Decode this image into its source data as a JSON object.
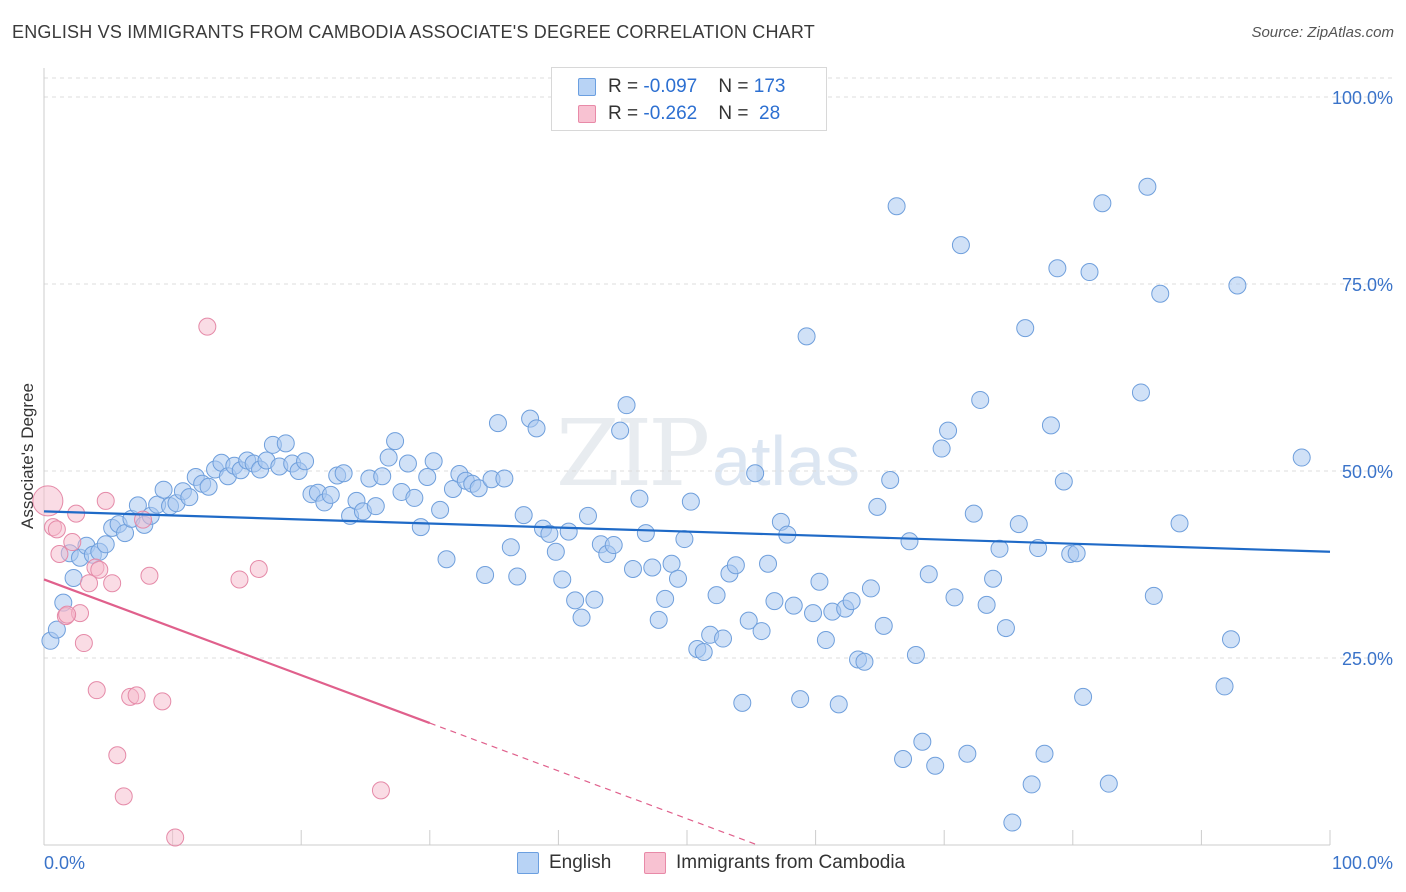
{
  "title": "ENGLISH VS IMMIGRANTS FROM CAMBODIA ASSOCIATE'S DEGREE CORRELATION CHART",
  "source": "Source: ZipAtlas.com",
  "watermark": {
    "zip": "ZIP",
    "atlas": "atlas"
  },
  "legend": {
    "r_label": "R = ",
    "n_label": "N = ",
    "series": [
      {
        "r": "-0.097",
        "n": "173"
      },
      {
        "r": "-0.262",
        "n": " 28"
      }
    ]
  },
  "colors": {
    "english_fill": "#a9c8f0",
    "english_stroke": "#6f9fdc",
    "english_line": "#1f6ac7",
    "cambodia_fill": "#f6b9cc",
    "cambodia_stroke": "#e58aa8",
    "cambodia_line": "#e0608c",
    "tick_label": "#3a73c9",
    "grid": "#dcdcdc"
  },
  "chart_data": {
    "type": "scatter",
    "title": "ENGLISH VS IMMIGRANTS FROM CAMBODIA ASSOCIATE'S DEGREE CORRELATION CHART",
    "xlabel": "",
    "ylabel": "Associate's Degree",
    "xlim": [
      0,
      100
    ],
    "ylim": [
      0,
      100
    ],
    "x_tick_labels": [
      "0.0%",
      "100.0%"
    ],
    "y_ticks": [
      25,
      50,
      75,
      100
    ],
    "y_tick_labels": [
      "25.0%",
      "50.0%",
      "75.0%",
      "100.0%"
    ],
    "series": [
      {
        "name": "English",
        "r": -0.097,
        "n": 173,
        "trend": {
          "x0": 0,
          "y0": 44.6,
          "x1": 100,
          "y1": 39.2
        },
        "points": [
          [
            0.5,
            27.3
          ],
          [
            1.0,
            28.8
          ],
          [
            1.5,
            32.4
          ],
          [
            2.0,
            39.0
          ],
          [
            2.3,
            35.7
          ],
          [
            2.8,
            38.4
          ],
          [
            3.3,
            40.0
          ],
          [
            3.8,
            38.8
          ],
          [
            4.3,
            39.2
          ],
          [
            4.8,
            40.2
          ],
          [
            5.3,
            42.4
          ],
          [
            5.8,
            42.9
          ],
          [
            6.3,
            41.7
          ],
          [
            6.8,
            43.6
          ],
          [
            7.3,
            45.4
          ],
          [
            7.8,
            42.8
          ],
          [
            8.3,
            44.0
          ],
          [
            8.8,
            45.5
          ],
          [
            9.3,
            47.5
          ],
          [
            9.8,
            45.3
          ],
          [
            10.3,
            45.7
          ],
          [
            10.8,
            47.3
          ],
          [
            11.3,
            46.5
          ],
          [
            11.8,
            49.2
          ],
          [
            12.3,
            48.3
          ],
          [
            12.8,
            47.9
          ],
          [
            13.3,
            50.2
          ],
          [
            13.8,
            51.1
          ],
          [
            14.3,
            49.3
          ],
          [
            14.8,
            50.7
          ],
          [
            15.3,
            50.1
          ],
          [
            15.8,
            51.4
          ],
          [
            16.3,
            51.0
          ],
          [
            16.8,
            50.2
          ],
          [
            17.3,
            51.4
          ],
          [
            17.8,
            53.5
          ],
          [
            18.3,
            50.6
          ],
          [
            18.8,
            53.7
          ],
          [
            19.3,
            51.0
          ],
          [
            19.8,
            50.0
          ],
          [
            20.3,
            51.3
          ],
          [
            20.8,
            46.9
          ],
          [
            21.3,
            47.1
          ],
          [
            21.8,
            45.8
          ],
          [
            22.3,
            46.8
          ],
          [
            22.8,
            49.4
          ],
          [
            23.3,
            49.7
          ],
          [
            23.8,
            44.0
          ],
          [
            24.3,
            46.0
          ],
          [
            24.8,
            44.6
          ],
          [
            25.3,
            49.0
          ],
          [
            25.8,
            45.3
          ],
          [
            26.3,
            49.3
          ],
          [
            26.8,
            51.8
          ],
          [
            27.3,
            54.0
          ],
          [
            27.8,
            47.2
          ],
          [
            28.3,
            51.0
          ],
          [
            28.8,
            46.4
          ],
          [
            29.3,
            42.5
          ],
          [
            29.8,
            49.2
          ],
          [
            30.3,
            51.3
          ],
          [
            30.8,
            44.8
          ],
          [
            31.3,
            38.2
          ],
          [
            31.8,
            47.6
          ],
          [
            32.3,
            49.6
          ],
          [
            32.8,
            48.7
          ],
          [
            33.3,
            48.3
          ],
          [
            33.8,
            47.7
          ],
          [
            34.3,
            36.1
          ],
          [
            34.8,
            48.9
          ],
          [
            35.3,
            56.4
          ],
          [
            35.8,
            49.0
          ],
          [
            36.3,
            39.8
          ],
          [
            36.8,
            35.9
          ],
          [
            37.3,
            44.1
          ],
          [
            37.8,
            57.0
          ],
          [
            38.3,
            55.7
          ],
          [
            38.8,
            42.3
          ],
          [
            39.3,
            41.6
          ],
          [
            39.8,
            39.2
          ],
          [
            40.3,
            35.5
          ],
          [
            40.8,
            41.9
          ],
          [
            41.3,
            32.7
          ],
          [
            41.8,
            30.4
          ],
          [
            42.3,
            44.0
          ],
          [
            42.8,
            32.8
          ],
          [
            43.3,
            40.2
          ],
          [
            43.8,
            38.9
          ],
          [
            44.3,
            40.1
          ],
          [
            44.8,
            55.4
          ],
          [
            45.3,
            58.8
          ],
          [
            45.8,
            36.9
          ],
          [
            46.3,
            46.3
          ],
          [
            46.8,
            41.7
          ],
          [
            47.3,
            37.1
          ],
          [
            47.8,
            30.1
          ],
          [
            48.3,
            32.9
          ],
          [
            48.8,
            37.6
          ],
          [
            49.3,
            35.6
          ],
          [
            49.8,
            40.9
          ],
          [
            50.3,
            45.9
          ],
          [
            50.8,
            26.2
          ],
          [
            51.3,
            25.8
          ],
          [
            51.8,
            28.1
          ],
          [
            52.3,
            33.4
          ],
          [
            52.8,
            27.6
          ],
          [
            53.3,
            36.3
          ],
          [
            53.8,
            37.4
          ],
          [
            54.3,
            19.0
          ],
          [
            54.8,
            30.0
          ],
          [
            55.3,
            49.7
          ],
          [
            55.8,
            28.6
          ],
          [
            56.3,
            37.6
          ],
          [
            56.8,
            32.6
          ],
          [
            57.3,
            43.2
          ],
          [
            57.8,
            41.5
          ],
          [
            58.3,
            32.0
          ],
          [
            58.8,
            19.5
          ],
          [
            59.3,
            68.0
          ],
          [
            59.8,
            31.0
          ],
          [
            60.3,
            35.2
          ],
          [
            60.8,
            27.4
          ],
          [
            61.3,
            31.2
          ],
          [
            61.8,
            18.8
          ],
          [
            62.3,
            31.6
          ],
          [
            62.8,
            32.6
          ],
          [
            63.3,
            24.8
          ],
          [
            63.8,
            24.5
          ],
          [
            64.3,
            34.3
          ],
          [
            64.8,
            45.2
          ],
          [
            65.3,
            29.3
          ],
          [
            65.8,
            48.8
          ],
          [
            66.3,
            85.4
          ],
          [
            66.8,
            11.5
          ],
          [
            67.3,
            40.6
          ],
          [
            67.8,
            25.4
          ],
          [
            68.3,
            13.8
          ],
          [
            68.8,
            36.2
          ],
          [
            69.3,
            10.6
          ],
          [
            69.8,
            53.0
          ],
          [
            70.3,
            55.4
          ],
          [
            70.8,
            33.1
          ],
          [
            71.3,
            80.2
          ],
          [
            71.8,
            12.2
          ],
          [
            72.3,
            44.3
          ],
          [
            72.8,
            59.5
          ],
          [
            73.3,
            32.1
          ],
          [
            73.8,
            35.6
          ],
          [
            74.3,
            39.6
          ],
          [
            74.8,
            29.0
          ],
          [
            75.3,
            3.0
          ],
          [
            75.8,
            42.9
          ],
          [
            76.3,
            69.1
          ],
          [
            76.8,
            8.1
          ],
          [
            77.3,
            39.7
          ],
          [
            77.8,
            12.2
          ],
          [
            78.3,
            56.1
          ],
          [
            78.8,
            77.1
          ],
          [
            79.3,
            48.6
          ],
          [
            79.8,
            38.9
          ],
          [
            80.3,
            39.0
          ],
          [
            80.8,
            19.8
          ],
          [
            81.3,
            76.6
          ],
          [
            82.3,
            85.8
          ],
          [
            82.8,
            8.2
          ],
          [
            85.3,
            60.5
          ],
          [
            85.8,
            88.0
          ],
          [
            86.3,
            33.3
          ],
          [
            86.8,
            73.7
          ],
          [
            88.3,
            43.0
          ],
          [
            91.8,
            21.2
          ],
          [
            92.3,
            27.5
          ],
          [
            92.8,
            74.8
          ],
          [
            97.8,
            51.8
          ]
        ]
      },
      {
        "name": "Immigrants from Cambodia",
        "r": -0.262,
        "n": 28,
        "trend": {
          "x0": 0,
          "y0": 35.5,
          "x1": 30,
          "y1": 16.3
        },
        "trend_dashed": {
          "x0": 30,
          "y0": 16.3,
          "x1": 55.5,
          "y1": 0
        },
        "points": [
          [
            0.3,
            46.0
          ],
          [
            0.7,
            42.5
          ],
          [
            1.2,
            38.9
          ],
          [
            1.7,
            30.6
          ],
          [
            2.2,
            40.5
          ],
          [
            2.5,
            44.3
          ],
          [
            2.8,
            31.0
          ],
          [
            3.1,
            27.0
          ],
          [
            3.5,
            35.0
          ],
          [
            4.0,
            37.1
          ],
          [
            4.3,
            36.8
          ],
          [
            4.8,
            46.0
          ],
          [
            5.3,
            35.0
          ],
          [
            5.7,
            12.0
          ],
          [
            6.2,
            6.5
          ],
          [
            6.7,
            19.8
          ],
          [
            7.2,
            20.0
          ],
          [
            7.7,
            43.5
          ],
          [
            8.2,
            36.0
          ],
          [
            9.2,
            19.2
          ],
          [
            10.2,
            1.0
          ],
          [
            12.7,
            69.3
          ],
          [
            15.2,
            35.5
          ],
          [
            16.7,
            36.9
          ],
          [
            26.2,
            7.3
          ],
          [
            4.1,
            20.7
          ],
          [
            1.0,
            42.2
          ],
          [
            1.8,
            30.8
          ]
        ]
      }
    ]
  }
}
